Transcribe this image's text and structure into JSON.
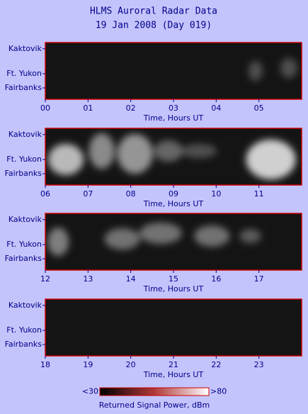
{
  "title": "HLMS Auroral Radar Data",
  "subtitle": "19 Jan 2008 (Day 019)",
  "chart_data": [
    {
      "type": "image",
      "xlabel": "Time, Hours UT",
      "ylabels": [
        "Kaktovik",
        "Ft. Yukon",
        "Fairbanks"
      ],
      "xlim": [
        0,
        6
      ],
      "xticks": [
        {
          "value": 0,
          "label": "00"
        },
        {
          "value": 1,
          "label": "01"
        },
        {
          "value": 2,
          "label": "02"
        },
        {
          "value": 3,
          "label": "03"
        },
        {
          "value": 4,
          "label": "04"
        },
        {
          "value": 5,
          "label": "05"
        }
      ]
    },
    {
      "type": "image",
      "xlabel": "Time, Hours UT",
      "ylabels": [
        "Kaktovik",
        "Ft. Yukon",
        "Fairbanks"
      ],
      "xlim": [
        6,
        12
      ],
      "xticks": [
        {
          "value": 6,
          "label": "06"
        },
        {
          "value": 7,
          "label": "07"
        },
        {
          "value": 8,
          "label": "08"
        },
        {
          "value": 9,
          "label": "09"
        },
        10,
        11
      ]
    },
    {
      "type": "image",
      "xlabel": "Time, Hours UT",
      "ylabels": [
        "Kaktovik",
        "Ft. Yukon",
        "Fairbanks"
      ],
      "xlim": [
        12,
        18
      ],
      "xticks": [
        12,
        13,
        14,
        15,
        16,
        17
      ]
    },
    {
      "type": "image",
      "xlabel": "Time, Hours UT",
      "ylabels": [
        "Kaktovik",
        "Ft. Yukon",
        "Fairbanks"
      ],
      "xlim": [
        18,
        24
      ],
      "xticks": [
        18,
        19,
        20,
        21,
        22,
        23
      ]
    }
  ],
  "colorbar": {
    "label": "Returned Signal Power, dBm",
    "ticks": [
      {
        "value": 30,
        "label": "<30"
      },
      {
        "value": 80,
        "label": ">80"
      }
    ],
    "colors": [
      "#000000",
      "#b03838",
      "#ffffff"
    ]
  }
}
